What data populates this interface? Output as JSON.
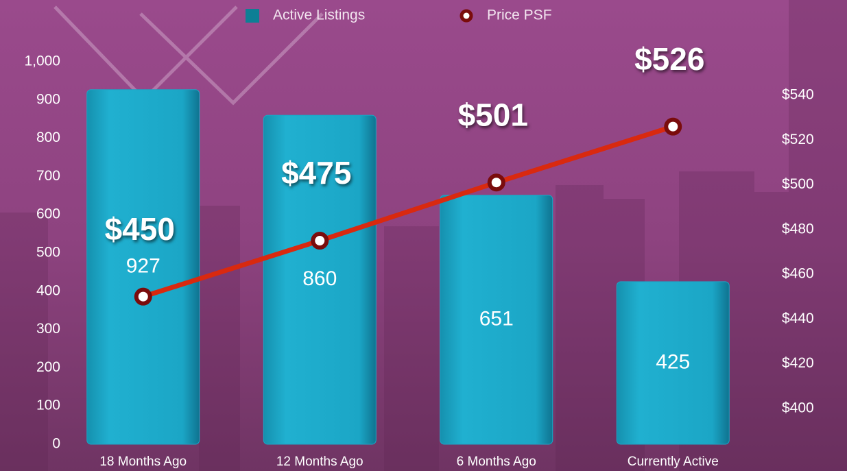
{
  "chart_data": {
    "type": "bar-line",
    "categories": [
      "18 Months Ago",
      "12 Months Ago",
      "6 Months Ago",
      "Currently Active"
    ],
    "series": [
      {
        "name": "Active Listings",
        "color": "#1ba6c6",
        "type": "bar",
        "values": [
          927,
          860,
          651,
          425
        ]
      },
      {
        "name": "Price PSF",
        "color": "#d9290f",
        "type": "line",
        "axis": "y2",
        "values": [
          450,
          475,
          501,
          526
        ],
        "value_labels": [
          "$450",
          "$475",
          "$501",
          "$526"
        ]
      }
    ],
    "ylim": [
      0,
      1000
    ],
    "yticks": [
      0,
      100,
      200,
      300,
      400,
      500,
      600,
      700,
      800,
      900,
      {
        "value": 1000,
        "label": "1,000"
      }
    ],
    "y2lim": [
      384,
      555
    ],
    "y2ticks": [
      {
        "value": 400,
        "label": "$400"
      },
      {
        "value": 420,
        "label": "$420"
      },
      {
        "value": 440,
        "label": "$440"
      },
      {
        "value": 460,
        "label": "$460"
      },
      {
        "value": 480,
        "label": "$480"
      },
      {
        "value": 500,
        "label": "$500"
      },
      {
        "value": 520,
        "label": "$520"
      },
      {
        "value": 540,
        "label": "$540"
      }
    ],
    "legend": "top"
  }
}
